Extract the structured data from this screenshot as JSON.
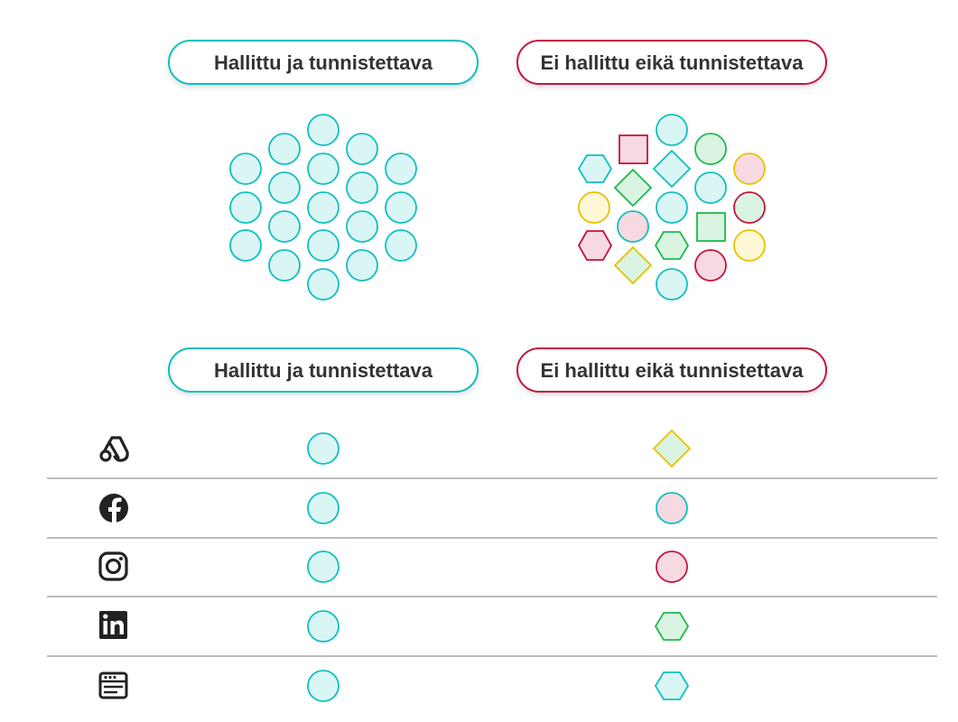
{
  "colors": {
    "teal_stroke": "#10bfbf",
    "teal_fill": "#d9f6f5",
    "crimson_stroke": "#c4123f",
    "pink_fill": "#f7d9e1",
    "green_stroke": "#1eb84d",
    "green_fill": "#d9f5e1",
    "yellow_stroke": "#e6c200",
    "yellow_fill": "#fdf7d6",
    "divider": "#a6a6a6",
    "icon": "#222222",
    "text": "#333333"
  },
  "top_pills": {
    "left": "Hallittu ja tunnistettava",
    "right": "Ei hallittu eikä tunnistettava"
  },
  "bottom_pills": {
    "left": "Hallittu ja tunnistettava",
    "right": "Ei hallittu eikä tunnistettava"
  },
  "table_rows": [
    {
      "icon": "google-ads-icon",
      "right_shape": "diamond",
      "right_style": "yellow"
    },
    {
      "icon": "facebook-icon",
      "right_shape": "circle",
      "right_style": "teal-pink"
    },
    {
      "icon": "instagram-icon",
      "right_shape": "circle",
      "right_style": "crimson"
    },
    {
      "icon": "linkedin-icon",
      "right_shape": "hexagon",
      "right_style": "green"
    },
    {
      "icon": "website-icon",
      "right_shape": "hexagon",
      "right_style": "teal"
    }
  ]
}
